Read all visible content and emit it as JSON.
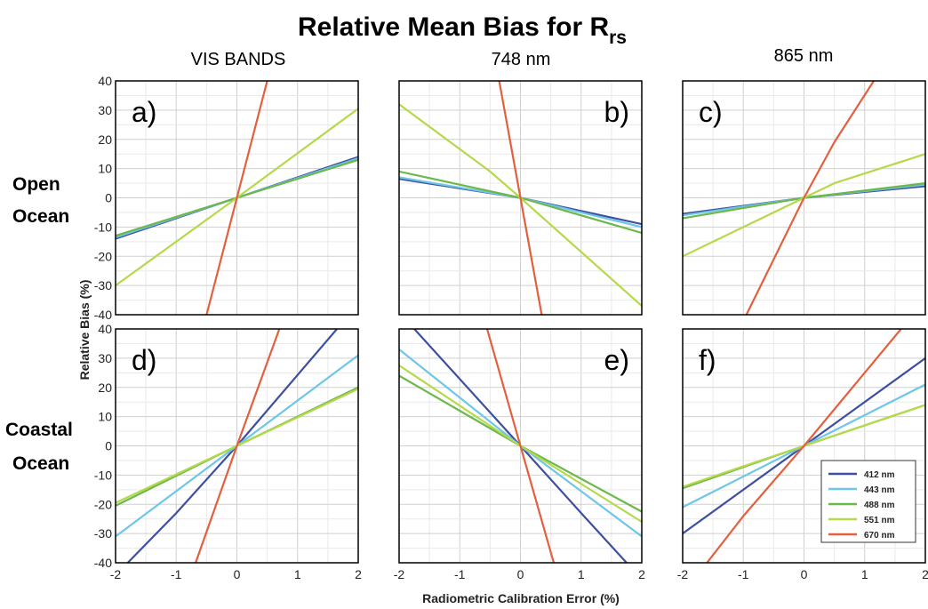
{
  "figure": {
    "title_main": "Relative Mean Bias for R",
    "title_sub": "rs",
    "column_titles": [
      "VIS BANDS",
      "748 nm",
      "865 nm"
    ],
    "row_labels": [
      [
        "Open",
        "Ocean"
      ],
      [
        "Coastal",
        "Ocean"
      ]
    ],
    "xlabel": "Radiometric Calibration Error (%)",
    "ylabel": "Relative Bias (%)"
  },
  "chart_data": {
    "type": "line",
    "xlim": [
      -2,
      2
    ],
    "ylim": [
      -40,
      40
    ],
    "x_ticks": [
      "-2",
      "-1",
      "0",
      "1",
      "2"
    ],
    "y_ticks": [
      "40",
      "30",
      "20",
      "10",
      "0",
      "-10",
      "-20",
      "-30",
      "-40"
    ],
    "grid": true,
    "legend_position": "bottom-right of panel f",
    "legend": [
      {
        "name": "412 nm",
        "color": "#3e4fa0"
      },
      {
        "name": "443 nm",
        "color": "#6ec6e8"
      },
      {
        "name": "488 nm",
        "color": "#6cb84a"
      },
      {
        "name": "551 nm",
        "color": "#b5d94a"
      },
      {
        "name": "670 nm",
        "color": "#e2603e"
      }
    ],
    "panels": [
      {
        "label": "a)",
        "row": 0,
        "col": 0,
        "series": [
          {
            "name": "412 nm",
            "x": [
              -2,
              0,
              2
            ],
            "y": [
              -14,
              0,
              14
            ]
          },
          {
            "name": "443 nm",
            "x": [
              -2,
              0,
              2
            ],
            "y": [
              -13.5,
              0,
              13.5
            ]
          },
          {
            "name": "488 nm",
            "x": [
              -2,
              0,
              2
            ],
            "y": [
              -13,
              0,
              13
            ]
          },
          {
            "name": "551 nm",
            "x": [
              -2,
              0,
              2
            ],
            "y": [
              -30,
              0,
              30.5
            ]
          },
          {
            "name": "670 nm",
            "x": [
              -0.5,
              0,
              0.5
            ],
            "y": [
              -40,
              0,
              40
            ]
          }
        ]
      },
      {
        "label": "b)",
        "row": 0,
        "col": 1,
        "series": [
          {
            "name": "412 nm",
            "x": [
              -2,
              0,
              2
            ],
            "y": [
              6.5,
              0,
              -9
            ]
          },
          {
            "name": "443 nm",
            "x": [
              -2,
              0,
              2
            ],
            "y": [
              7,
              0,
              -10
            ]
          },
          {
            "name": "488 nm",
            "x": [
              -2,
              0,
              2
            ],
            "y": [
              9,
              0,
              -12
            ]
          },
          {
            "name": "551 nm",
            "x": [
              -2,
              -0.5,
              0,
              2
            ],
            "y": [
              32,
              9,
              0,
              -37
            ]
          },
          {
            "name": "670 nm",
            "x": [
              -0.35,
              0,
              0.35
            ],
            "y": [
              40,
              0,
              -40
            ]
          }
        ]
      },
      {
        "label": "c)",
        "row": 0,
        "col": 2,
        "series": [
          {
            "name": "412 nm",
            "x": [
              -2,
              0,
              2
            ],
            "y": [
              -5.5,
              0,
              4
            ]
          },
          {
            "name": "443 nm",
            "x": [
              -2,
              0,
              2
            ],
            "y": [
              -6,
              0,
              4.5
            ]
          },
          {
            "name": "488 nm",
            "x": [
              -2,
              0,
              2
            ],
            "y": [
              -7,
              0,
              5
            ]
          },
          {
            "name": "551 nm",
            "x": [
              -2,
              0,
              0.5,
              2
            ],
            "y": [
              -20,
              0,
              5,
              15
            ]
          },
          {
            "name": "670 nm",
            "x": [
              -0.95,
              0,
              0.5,
              1.15
            ],
            "y": [
              -40,
              0,
              19,
              40
            ]
          }
        ]
      },
      {
        "label": "d)",
        "row": 1,
        "col": 0,
        "series": [
          {
            "name": "412 nm",
            "x": [
              -1.8,
              -1,
              0,
              1.65
            ],
            "y": [
              -40,
              -23,
              0,
              40
            ]
          },
          {
            "name": "443 nm",
            "x": [
              -2,
              0,
              2
            ],
            "y": [
              -31,
              0,
              31
            ]
          },
          {
            "name": "488 nm",
            "x": [
              -2,
              0,
              2
            ],
            "y": [
              -20.5,
              0,
              20
            ]
          },
          {
            "name": "551 nm",
            "x": [
              -2,
              0,
              2
            ],
            "y": [
              -19.5,
              0,
              19.5
            ]
          },
          {
            "name": "670 nm",
            "x": [
              -0.68,
              0,
              0.7
            ],
            "y": [
              -40,
              0,
              40
            ]
          }
        ]
      },
      {
        "label": "e)",
        "row": 1,
        "col": 1,
        "series": [
          {
            "name": "412 nm",
            "x": [
              -1.75,
              0,
              1,
              1.75
            ],
            "y": [
              40,
              0,
              -23,
              -40
            ]
          },
          {
            "name": "443 nm",
            "x": [
              -2,
              0,
              2
            ],
            "y": [
              33,
              0,
              -31
            ]
          },
          {
            "name": "488 nm",
            "x": [
              -2,
              0,
              2
            ],
            "y": [
              24,
              0,
              -22.5
            ]
          },
          {
            "name": "551 nm",
            "x": [
              -2,
              0,
              2
            ],
            "y": [
              27.5,
              0,
              -26
            ]
          },
          {
            "name": "670 nm",
            "x": [
              -0.55,
              0,
              0.55
            ],
            "y": [
              40,
              0,
              -40
            ]
          }
        ]
      },
      {
        "label": "f)",
        "row": 1,
        "col": 2,
        "series": [
          {
            "name": "412 nm",
            "x": [
              -2,
              0,
              2
            ],
            "y": [
              -30,
              0,
              30
            ]
          },
          {
            "name": "443 nm",
            "x": [
              -2,
              0,
              2
            ],
            "y": [
              -21,
              0,
              21
            ]
          },
          {
            "name": "488 nm",
            "x": [
              -2,
              0,
              2
            ],
            "y": [
              -14.5,
              0,
              14
            ]
          },
          {
            "name": "551 nm",
            "x": [
              -2,
              0,
              2
            ],
            "y": [
              -14,
              0,
              14
            ]
          },
          {
            "name": "670 nm",
            "x": [
              -1.6,
              -1,
              0,
              1.6
            ],
            "y": [
              -40,
              -24,
              0,
              40
            ]
          }
        ]
      }
    ]
  }
}
